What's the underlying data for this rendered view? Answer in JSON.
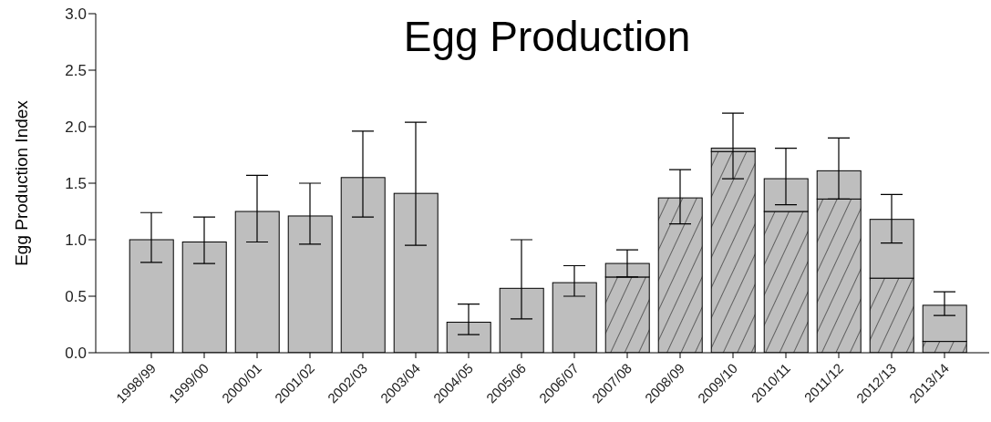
{
  "chart_data": {
    "type": "bar",
    "title": "Egg Production",
    "ylabel": "Egg Production Index",
    "stacked": true,
    "categories": [
      "1998/99",
      "1999/00",
      "2000/01",
      "2001/02",
      "2002/03",
      "2003/04",
      "2004/05",
      "2005/06",
      "2006/07",
      "2007/08",
      "2008/09",
      "2009/10",
      "2010/11",
      "2011/12",
      "2012/13",
      "2013/14"
    ],
    "series": [
      {
        "color": "#bebebe",
        "values": [
          null,
          null,
          null,
          null,
          null,
          null,
          null,
          null,
          null,
          0.67,
          1.37,
          1.78,
          1.25,
          1.36,
          0.66,
          0.1
        ]
      },
      {
        "color": "#bebebe",
        "values": [
          1.0,
          0.98,
          1.25,
          1.21,
          1.55,
          1.41,
          0.27,
          0.57,
          0.62,
          0.12,
          0,
          0.03,
          0.29,
          0.25,
          0.52,
          0.32
        ],
        "errors": [
          [
            0.8,
            1.24
          ],
          [
            0.79,
            1.2
          ],
          [
            0.98,
            1.57
          ],
          [
            0.96,
            1.5
          ],
          [
            1.2,
            1.96
          ],
          [
            0.95,
            2.04
          ],
          [
            0.16,
            0.43
          ],
          [
            0.3,
            1.0
          ],
          [
            0.5,
            0.77
          ],
          [
            0.67,
            0.91
          ],
          [
            1.14,
            1.62
          ],
          [
            1.54,
            2.12
          ],
          [
            1.31,
            1.81
          ],
          [
            1.36,
            1.9
          ],
          [
            0.97,
            1.4
          ],
          [
            0.33,
            0.54
          ]
        ]
      }
    ],
    "ylim": [
      0,
      3
    ],
    "yticks": [
      {
        "value": 0,
        "label": "0.0"
      },
      {
        "value": 0.5,
        "label": "0.5"
      },
      {
        "value": 1,
        "label": "1.0"
      },
      {
        "value": 1.5,
        "label": "1.5"
      },
      {
        "value": 2,
        "label": "2.0"
      },
      {
        "value": 2.5,
        "label": "2.5"
      },
      {
        "value": 3,
        "label": "3.0"
      }
    ],
    "grid": false,
    "legend": false
  }
}
